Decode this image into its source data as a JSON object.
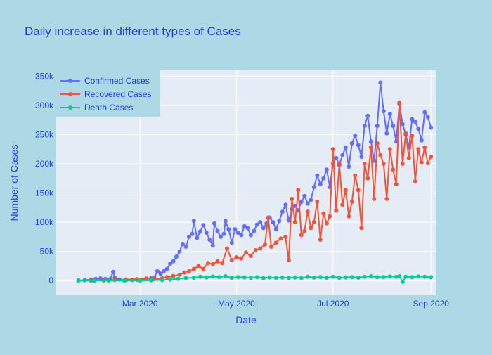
{
  "chart_data": {
    "type": "line",
    "title": "Daily increase in different types of Cases",
    "xlabel": "Date",
    "ylabel": "Number of Cases",
    "x_ticks": [
      {
        "label": "Mar 2020",
        "date": "2020-03-01"
      },
      {
        "label": "May 2020",
        "date": "2020-05-01"
      },
      {
        "label": "Jul 2020",
        "date": "2020-07-01"
      },
      {
        "label": "Sep 2020",
        "date": "2020-09-01"
      }
    ],
    "xlim": [
      "2020-01-08",
      "2020-09-04"
    ],
    "y_ticks": [
      {
        "label": "0",
        "value": 0
      },
      {
        "label": "50k",
        "value": 50000
      },
      {
        "label": "100k",
        "value": 100000
      },
      {
        "label": "150k",
        "value": 150000
      },
      {
        "label": "200k",
        "value": 200000
      },
      {
        "label": "250k",
        "value": 250000
      },
      {
        "label": "300k",
        "value": 300000
      },
      {
        "label": "350k",
        "value": 350000
      }
    ],
    "ylim": [
      -25000,
      360000
    ],
    "grid": true,
    "legend_position": "top-left",
    "colors": {
      "paper": "#add8e6",
      "plot_bg": "#e5ecf6",
      "grid": "#ffffff",
      "text": "#1f3fe0",
      "confirmed": "#636efa",
      "recovered": "#ef553b",
      "deaths": "#00cc96"
    },
    "series": [
      {
        "name": "Confirmed Cases",
        "key": "confirmed",
        "points": [
          [
            "2020-01-22",
            500
          ],
          [
            "2020-01-26",
            700
          ],
          [
            "2020-01-30",
            1800
          ],
          [
            "2020-02-02",
            2900
          ],
          [
            "2020-02-05",
            3700
          ],
          [
            "2020-02-08",
            3000
          ],
          [
            "2020-02-11",
            2500
          ],
          [
            "2020-02-13",
            15000
          ],
          [
            "2020-02-14",
            5000
          ],
          [
            "2020-02-17",
            1900
          ],
          [
            "2020-02-21",
            800
          ],
          [
            "2020-02-25",
            1200
          ],
          [
            "2020-02-28",
            1500
          ],
          [
            "2020-03-02",
            2000
          ],
          [
            "2020-03-05",
            2500
          ],
          [
            "2020-03-08",
            4000
          ],
          [
            "2020-03-10",
            5500
          ],
          [
            "2020-03-12",
            16000
          ],
          [
            "2020-03-14",
            12000
          ],
          [
            "2020-03-16",
            16000
          ],
          [
            "2020-03-18",
            20000
          ],
          [
            "2020-03-20",
            29000
          ],
          [
            "2020-03-22",
            33000
          ],
          [
            "2020-03-24",
            41000
          ],
          [
            "2020-03-26",
            50000
          ],
          [
            "2020-03-28",
            63000
          ],
          [
            "2020-03-30",
            58000
          ],
          [
            "2020-04-01",
            75000
          ],
          [
            "2020-04-03",
            80000
          ],
          [
            "2020-04-04",
            102000
          ],
          [
            "2020-04-06",
            73000
          ],
          [
            "2020-04-08",
            84000
          ],
          [
            "2020-04-10",
            95000
          ],
          [
            "2020-04-12",
            82000
          ],
          [
            "2020-04-14",
            70000
          ],
          [
            "2020-04-16",
            60000
          ],
          [
            "2020-04-17",
            98000
          ],
          [
            "2020-04-19",
            85000
          ],
          [
            "2020-04-21",
            75000
          ],
          [
            "2020-04-23",
            80000
          ],
          [
            "2020-04-24",
            102000
          ],
          [
            "2020-04-26",
            88000
          ],
          [
            "2020-04-28",
            65000
          ],
          [
            "2020-04-30",
            88000
          ],
          [
            "2020-05-02",
            82000
          ],
          [
            "2020-05-04",
            78000
          ],
          [
            "2020-05-06",
            93000
          ],
          [
            "2020-05-08",
            90000
          ],
          [
            "2020-05-10",
            78000
          ],
          [
            "2020-05-12",
            85000
          ],
          [
            "2020-05-14",
            96000
          ],
          [
            "2020-05-16",
            100000
          ],
          [
            "2020-05-18",
            90000
          ],
          [
            "2020-05-20",
            98000
          ],
          [
            "2020-05-22",
            108000
          ],
          [
            "2020-05-24",
            100000
          ],
          [
            "2020-05-26",
            88000
          ],
          [
            "2020-05-28",
            102000
          ],
          [
            "2020-05-30",
            118000
          ],
          [
            "2020-06-01",
            130000
          ],
          [
            "2020-06-03",
            103000
          ],
          [
            "2020-06-05",
            122000
          ],
          [
            "2020-06-07",
            128000
          ],
          [
            "2020-06-09",
            120000
          ],
          [
            "2020-06-11",
            135000
          ],
          [
            "2020-06-13",
            145000
          ],
          [
            "2020-06-15",
            132000
          ],
          [
            "2020-06-17",
            138000
          ],
          [
            "2020-06-19",
            160000
          ],
          [
            "2020-06-21",
            180000
          ],
          [
            "2020-06-23",
            165000
          ],
          [
            "2020-06-25",
            175000
          ],
          [
            "2020-06-27",
            190000
          ],
          [
            "2020-06-29",
            160000
          ],
          [
            "2020-07-01",
            200000
          ],
          [
            "2020-07-03",
            210000
          ],
          [
            "2020-07-05",
            198000
          ],
          [
            "2020-07-07",
            215000
          ],
          [
            "2020-07-09",
            228000
          ],
          [
            "2020-07-11",
            195000
          ],
          [
            "2020-07-13",
            235000
          ],
          [
            "2020-07-15",
            248000
          ],
          [
            "2020-07-17",
            232000
          ],
          [
            "2020-07-19",
            212000
          ],
          [
            "2020-07-21",
            265000
          ],
          [
            "2020-07-23",
            282000
          ],
          [
            "2020-07-25",
            238000
          ],
          [
            "2020-07-27",
            205000
          ],
          [
            "2020-07-29",
            265000
          ],
          [
            "2020-07-31",
            339000
          ],
          [
            "2020-08-02",
            290000
          ],
          [
            "2020-08-04",
            252000
          ],
          [
            "2020-08-06",
            285000
          ],
          [
            "2020-08-08",
            265000
          ],
          [
            "2020-08-10",
            238000
          ],
          [
            "2020-08-12",
            302000
          ],
          [
            "2020-08-14",
            268000
          ],
          [
            "2020-08-16",
            250000
          ],
          [
            "2020-08-18",
            228000
          ],
          [
            "2020-08-20",
            276000
          ],
          [
            "2020-08-22",
            272000
          ],
          [
            "2020-08-24",
            260000
          ],
          [
            "2020-08-26",
            240000
          ],
          [
            "2020-08-28",
            288000
          ],
          [
            "2020-08-30",
            280000
          ],
          [
            "2020-09-01",
            262000
          ]
        ]
      },
      {
        "name": "Recovered Cases",
        "key": "recovered",
        "points": [
          [
            "2020-01-22",
            0
          ],
          [
            "2020-01-30",
            100
          ],
          [
            "2020-02-07",
            400
          ],
          [
            "2020-02-14",
            1200
          ],
          [
            "2020-02-21",
            2000
          ],
          [
            "2020-02-28",
            2500
          ],
          [
            "2020-03-05",
            3500
          ],
          [
            "2020-03-10",
            2500
          ],
          [
            "2020-03-15",
            4000
          ],
          [
            "2020-03-18",
            6000
          ],
          [
            "2020-03-22",
            8000
          ],
          [
            "2020-03-26",
            10000
          ],
          [
            "2020-03-29",
            14000
          ],
          [
            "2020-04-01",
            16000
          ],
          [
            "2020-04-04",
            20000
          ],
          [
            "2020-04-07",
            25000
          ],
          [
            "2020-04-10",
            20000
          ],
          [
            "2020-04-13",
            30000
          ],
          [
            "2020-04-16",
            28000
          ],
          [
            "2020-04-19",
            33000
          ],
          [
            "2020-04-22",
            30000
          ],
          [
            "2020-04-25",
            55000
          ],
          [
            "2020-04-28",
            35000
          ],
          [
            "2020-05-01",
            40000
          ],
          [
            "2020-05-04",
            38000
          ],
          [
            "2020-05-07",
            48000
          ],
          [
            "2020-05-10",
            42000
          ],
          [
            "2020-05-13",
            52000
          ],
          [
            "2020-05-16",
            55000
          ],
          [
            "2020-05-19",
            62000
          ],
          [
            "2020-05-21",
            108000
          ],
          [
            "2020-05-23",
            58000
          ],
          [
            "2020-05-26",
            65000
          ],
          [
            "2020-05-29",
            72000
          ],
          [
            "2020-06-01",
            75000
          ],
          [
            "2020-06-03",
            35000
          ],
          [
            "2020-06-05",
            140000
          ],
          [
            "2020-06-07",
            100000
          ],
          [
            "2020-06-09",
            155000
          ],
          [
            "2020-06-11",
            78000
          ],
          [
            "2020-06-13",
            85000
          ],
          [
            "2020-06-15",
            118000
          ],
          [
            "2020-06-17",
            90000
          ],
          [
            "2020-06-19",
            100000
          ],
          [
            "2020-06-21",
            135000
          ],
          [
            "2020-06-23",
            70000
          ],
          [
            "2020-06-25",
            115000
          ],
          [
            "2020-06-27",
            98000
          ],
          [
            "2020-06-29",
            110000
          ],
          [
            "2020-07-01",
            225000
          ],
          [
            "2020-07-03",
            120000
          ],
          [
            "2020-07-05",
            200000
          ],
          [
            "2020-07-07",
            130000
          ],
          [
            "2020-07-09",
            155000
          ],
          [
            "2020-07-11",
            110000
          ],
          [
            "2020-07-13",
            135000
          ],
          [
            "2020-07-15",
            180000
          ],
          [
            "2020-07-17",
            155000
          ],
          [
            "2020-07-19",
            90000
          ],
          [
            "2020-07-21",
            200000
          ],
          [
            "2020-07-23",
            175000
          ],
          [
            "2020-07-25",
            228000
          ],
          [
            "2020-07-27",
            140000
          ],
          [
            "2020-07-29",
            235000
          ],
          [
            "2020-07-31",
            215000
          ],
          [
            "2020-08-02",
            200000
          ],
          [
            "2020-08-04",
            140000
          ],
          [
            "2020-08-06",
            225000
          ],
          [
            "2020-08-08",
            190000
          ],
          [
            "2020-08-10",
            165000
          ],
          [
            "2020-08-12",
            305000
          ],
          [
            "2020-08-14",
            200000
          ],
          [
            "2020-08-16",
            252000
          ],
          [
            "2020-08-18",
            210000
          ],
          [
            "2020-08-20",
            248000
          ],
          [
            "2020-08-22",
            170000
          ],
          [
            "2020-08-24",
            225000
          ],
          [
            "2020-08-26",
            202000
          ],
          [
            "2020-08-28",
            228000
          ],
          [
            "2020-08-30",
            201000
          ],
          [
            "2020-09-01",
            212000
          ]
        ]
      },
      {
        "name": "Death Cases",
        "key": "deaths",
        "points": [
          [
            "2020-01-22",
            0
          ],
          [
            "2020-02-01",
            50
          ],
          [
            "2020-02-10",
            100
          ],
          [
            "2020-02-20",
            200
          ],
          [
            "2020-03-01",
            300
          ],
          [
            "2020-03-08",
            500
          ],
          [
            "2020-03-15",
            1000
          ],
          [
            "2020-03-20",
            2000
          ],
          [
            "2020-03-25",
            3000
          ],
          [
            "2020-03-30",
            4500
          ],
          [
            "2020-04-04",
            5000
          ],
          [
            "2020-04-08",
            6500
          ],
          [
            "2020-04-12",
            5500
          ],
          [
            "2020-04-16",
            7000
          ],
          [
            "2020-04-20",
            6000
          ],
          [
            "2020-04-24",
            7500
          ],
          [
            "2020-04-28",
            5000
          ],
          [
            "2020-05-02",
            6000
          ],
          [
            "2020-05-06",
            5500
          ],
          [
            "2020-05-10",
            5000
          ],
          [
            "2020-05-14",
            6000
          ],
          [
            "2020-05-18",
            4500
          ],
          [
            "2020-05-22",
            5500
          ],
          [
            "2020-05-26",
            4800
          ],
          [
            "2020-05-30",
            5200
          ],
          [
            "2020-06-03",
            4800
          ],
          [
            "2020-06-07",
            5500
          ],
          [
            "2020-06-11",
            4500
          ],
          [
            "2020-06-15",
            6500
          ],
          [
            "2020-06-19",
            5200
          ],
          [
            "2020-06-23",
            6000
          ],
          [
            "2020-06-27",
            5000
          ],
          [
            "2020-07-01",
            6500
          ],
          [
            "2020-07-05",
            5000
          ],
          [
            "2020-07-09",
            5500
          ],
          [
            "2020-07-13",
            6000
          ],
          [
            "2020-07-17",
            5200
          ],
          [
            "2020-07-21",
            6500
          ],
          [
            "2020-07-25",
            7500
          ],
          [
            "2020-07-29",
            6000
          ],
          [
            "2020-08-02",
            6200
          ],
          [
            "2020-08-06",
            7000
          ],
          [
            "2020-08-10",
            6500
          ],
          [
            "2020-08-12",
            7500
          ],
          [
            "2020-08-14",
            -2000
          ],
          [
            "2020-08-16",
            6800
          ],
          [
            "2020-08-20",
            6000
          ],
          [
            "2020-08-24",
            7000
          ],
          [
            "2020-08-28",
            6500
          ],
          [
            "2020-09-01",
            5800
          ]
        ]
      }
    ]
  }
}
